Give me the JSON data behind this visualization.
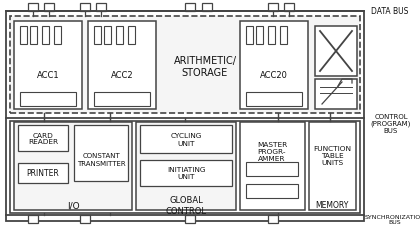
{
  "labels": {
    "data_bus": "DATA BUS",
    "control_bus": "CONTROL\n(PROGRAM)\nBUS",
    "sync_bus": "SYNCHRONIZATION\nBUS",
    "acc1": "ACC1",
    "acc2": "ACC2",
    "arith": "ARITHMETIC/\nSTORAGE",
    "acc20": "ACC20",
    "card_reader": "CARD\nREADER",
    "printer": "PRINTER",
    "const_trans": "CONSTANT\nTRANSMITTER",
    "io": "I/O",
    "cycling": "CYCLING\nUNIT",
    "initiating": "INITIATING\nUNIT",
    "global": "GLOBAL\nCONTROL",
    "master": "MASTER\nPROGR-\nAMMER",
    "func_table": "FUNCTION\nTABLE\nUNITS",
    "memory": "MEMORY"
  },
  "lc": "#444444",
  "lc2": "#666666"
}
